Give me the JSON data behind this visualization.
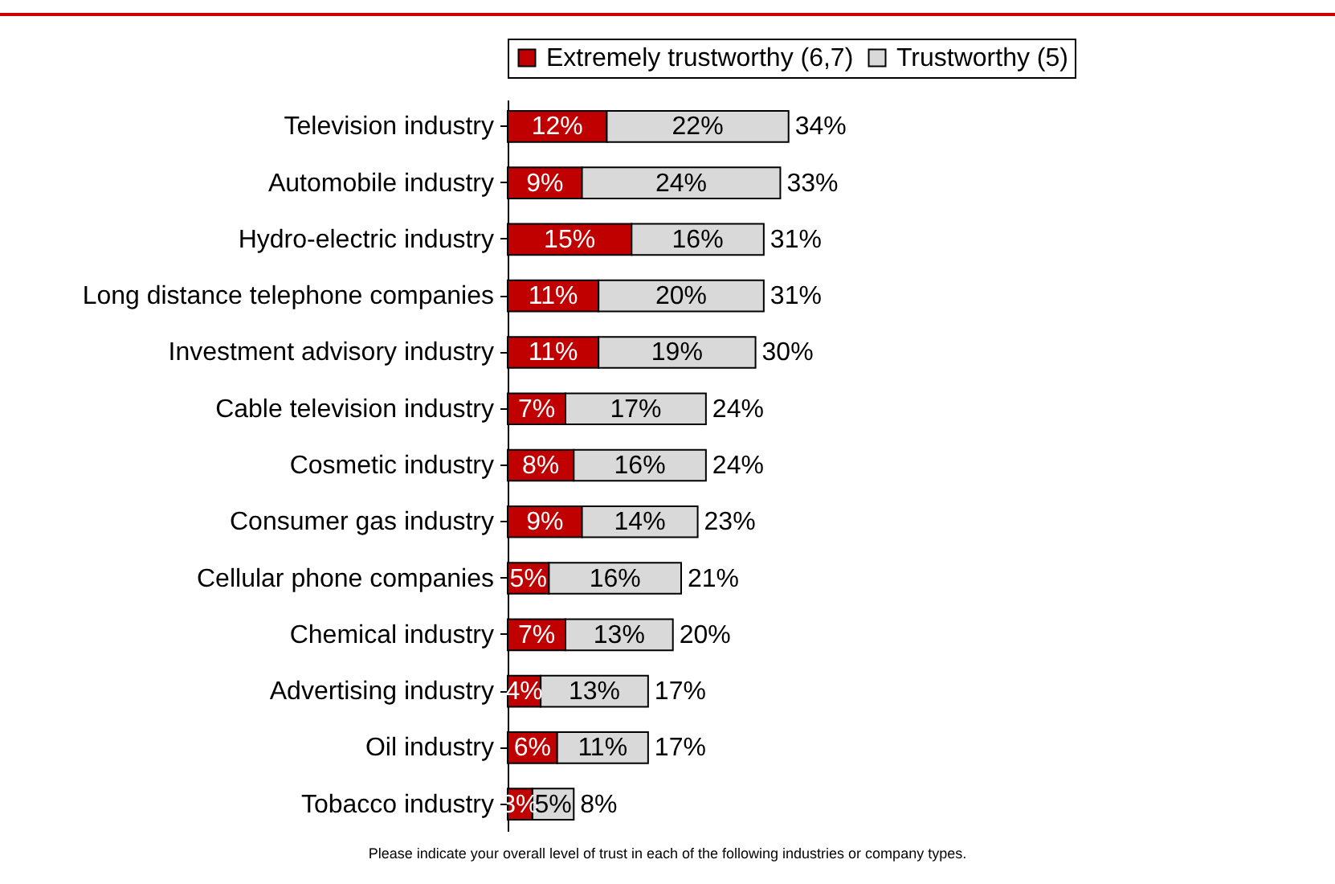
{
  "chart_data": {
    "type": "bar",
    "orientation": "horizontal",
    "stacked": true,
    "legend": "top",
    "categories": [
      "Television industry",
      "Automobile industry",
      "Hydro-electric industry",
      "Long distance telephone companies",
      "Investment advisory industry",
      "Cable television industry",
      "Cosmetic industry",
      "Consumer gas industry",
      "Cellular phone companies",
      "Chemical industry",
      "Advertising industry",
      "Oil industry",
      "Tobacco industry"
    ],
    "series": [
      {
        "name": "Extremely trustworthy (6,7)",
        "color": "#c00000",
        "values": [
          12,
          9,
          15,
          11,
          11,
          7,
          8,
          9,
          5,
          7,
          4,
          6,
          3
        ],
        "value_labels": [
          "12%",
          "9%",
          "15%",
          "11%",
          "11%",
          "7%",
          "8%",
          "9%",
          "5%",
          "7%",
          "4%",
          "6%",
          "3%"
        ]
      },
      {
        "name": "Trustworthy (5)",
        "color": "#d9d9d9",
        "values": [
          22,
          24,
          16,
          20,
          19,
          17,
          16,
          14,
          16,
          13,
          13,
          11,
          5
        ],
        "value_labels": [
          "22%",
          "24%",
          "16%",
          "20%",
          "19%",
          "17%",
          "16%",
          "14%",
          "16%",
          "13%",
          "13%",
          "11%",
          "5%"
        ]
      }
    ],
    "totals": [
      "34%",
      "33%",
      "31%",
      "31%",
      "30%",
      "24%",
      "24%",
      "23%",
      "21%",
      "20%",
      "17%",
      "17%",
      "8%"
    ],
    "annotations": [
      "Please indicate your overall level of trust in each of the following industries or company types."
    ]
  }
}
